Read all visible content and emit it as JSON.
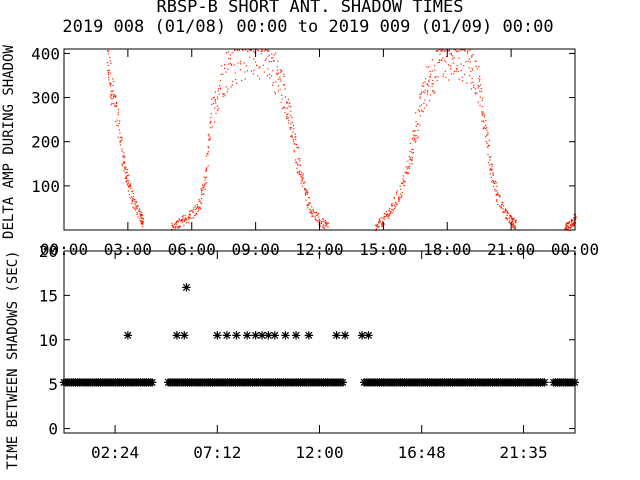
{
  "title": "RBSP-B SHORT ANT. SHADOW TIMES",
  "subtitle": "2019 008 (01/08) 00:00 to 2019 009 (01/09) 00:00",
  "chart_data": [
    {
      "type": "scatter",
      "ylabel": "DELTA AMP DURING SHADOW",
      "xlim": [
        0,
        24
      ],
      "ylim": [
        0,
        410
      ],
      "x_ticks": [
        "00:00",
        "03:00",
        "06:00",
        "09:00",
        "12:00",
        "15:00",
        "18:00",
        "21:00",
        "00:00"
      ],
      "y_ticks": [
        "100",
        "200",
        "300",
        "400"
      ],
      "y_tick_values": [
        100,
        200,
        300,
        400
      ],
      "color": "#ff2000",
      "series": [
        {
          "values": [
            [
              2.0,
              400
            ],
            [
              2.2,
              330
            ],
            [
              2.5,
              250
            ],
            [
              2.8,
              150
            ],
            [
              3.0,
              100
            ],
            [
              3.3,
              60
            ],
            [
              3.6,
              30
            ],
            [
              3.7,
              20
            ]
          ]
        },
        {
          "values": [
            [
              5.0,
              5
            ],
            [
              5.4,
              15
            ],
            [
              5.8,
              30
            ],
            [
              6.3,
              50
            ],
            [
              6.6,
              110
            ],
            [
              6.9,
              250
            ],
            [
              7.4,
              350
            ],
            [
              8.0,
              385
            ],
            [
              8.8,
              400
            ],
            [
              9.5,
              400
            ],
            [
              10.0,
              350
            ],
            [
              10.4,
              300
            ],
            [
              10.7,
              220
            ],
            [
              11.0,
              150
            ],
            [
              11.3,
              90
            ],
            [
              11.6,
              45
            ],
            [
              12.0,
              20
            ],
            [
              12.4,
              8
            ]
          ]
        },
        {
          "values": [
            [
              14.6,
              5
            ],
            [
              15.0,
              25
            ],
            [
              15.4,
              50
            ],
            [
              15.8,
              90
            ],
            [
              16.2,
              150
            ],
            [
              16.5,
              230
            ],
            [
              16.9,
              310
            ],
            [
              17.3,
              360
            ],
            [
              17.8,
              390
            ],
            [
              18.3,
              400
            ],
            [
              18.9,
              390
            ],
            [
              19.4,
              340
            ],
            [
              19.7,
              260
            ],
            [
              20.0,
              150
            ],
            [
              20.3,
              80
            ],
            [
              20.7,
              40
            ],
            [
              21.0,
              20
            ],
            [
              21.2,
              12
            ]
          ]
        },
        {
          "values": [
            [
              23.5,
              3
            ],
            [
              23.7,
              10
            ],
            [
              23.9,
              20
            ],
            [
              24.0,
              30
            ]
          ]
        }
      ]
    },
    {
      "type": "scatter",
      "ylabel": "TIME BETWEEN SHADOWS (SEC)",
      "xlim": [
        0,
        24
      ],
      "ylim": [
        -0.5,
        20
      ],
      "x_ticks": [
        "02:24",
        "07:12",
        "12:00",
        "16:48",
        "21:35"
      ],
      "x_tick_values": [
        2.4,
        7.2,
        12.0,
        16.8,
        21.583
      ],
      "y_ticks": [
        "0",
        "5",
        "10",
        "15",
        "20"
      ],
      "y_tick_values": [
        0,
        5,
        10,
        15,
        20
      ],
      "marker": "*",
      "baseline_value": 5.2,
      "baseline_ranges": [
        [
          0,
          4.2
        ],
        [
          4.9,
          13.1
        ],
        [
          14.1,
          22.6
        ],
        [
          23.0,
          24
        ]
      ],
      "points": [
        [
          3.0,
          10.5
        ],
        [
          5.3,
          10.5
        ],
        [
          5.65,
          10.5
        ],
        [
          5.75,
          15.9
        ],
        [
          7.2,
          10.5
        ],
        [
          7.65,
          10.5
        ],
        [
          8.1,
          10.5
        ],
        [
          8.6,
          10.5
        ],
        [
          9.0,
          10.5
        ],
        [
          9.3,
          10.5
        ],
        [
          9.6,
          10.5
        ],
        [
          9.9,
          10.5
        ],
        [
          10.4,
          10.5
        ],
        [
          10.9,
          10.5
        ],
        [
          11.5,
          10.5
        ],
        [
          12.8,
          10.5
        ],
        [
          13.2,
          10.5
        ],
        [
          14.0,
          10.5
        ],
        [
          14.3,
          10.5
        ]
      ]
    }
  ]
}
